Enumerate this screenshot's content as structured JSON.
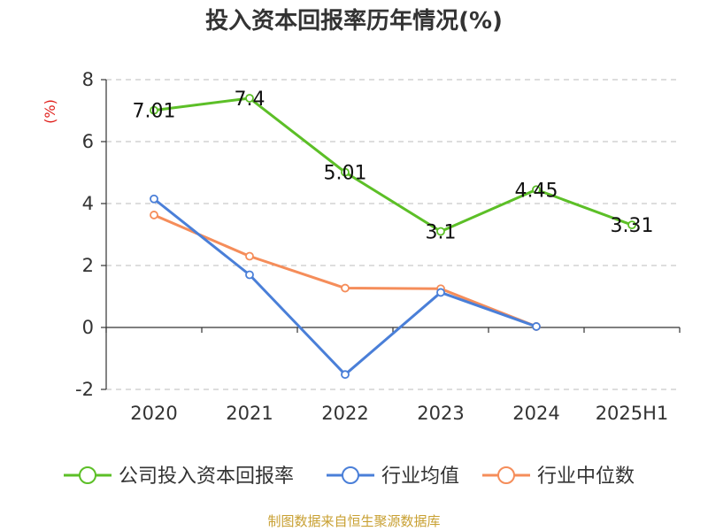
{
  "chart_data": {
    "type": "line",
    "title": "投入资本回报率历年情况(%)",
    "y_unit": "(%)",
    "categories": [
      "2020",
      "2021",
      "2022",
      "2023",
      "2024",
      "2025H1"
    ],
    "ylim": [
      -2,
      8
    ],
    "yticks": [
      -2,
      0,
      2,
      4,
      6,
      8
    ],
    "grid": true,
    "legend_position": "bottom",
    "series": [
      {
        "name": "公司投入资本回报率",
        "color": "#5cbf27",
        "values": [
          7.01,
          7.4,
          5.01,
          3.1,
          4.45,
          3.31
        ],
        "labels": [
          "7.01",
          "7.4",
          "5.01",
          "3.1",
          "4.45",
          "3.31"
        ]
      },
      {
        "name": "行业均值",
        "color": "#4a7fd8",
        "values": [
          4.15,
          1.7,
          -1.52,
          1.13,
          0.03,
          null
        ]
      },
      {
        "name": "行业中位数",
        "color": "#f58d5a",
        "values": [
          3.63,
          2.3,
          1.27,
          1.25,
          0.03,
          null
        ]
      }
    ],
    "source": "制图数据来自恒生聚源数据库"
  }
}
